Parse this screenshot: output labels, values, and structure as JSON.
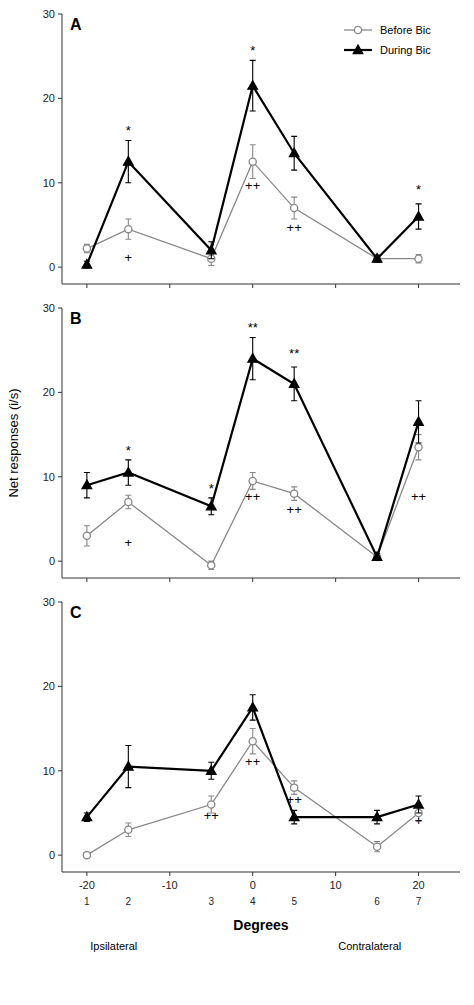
{
  "chart_data": [
    {
      "type": "line",
      "title": "A",
      "x": [
        -20,
        -15,
        -5,
        0,
        5,
        15,
        20
      ],
      "xlim": [
        -23,
        25
      ],
      "xticks": [
        -20,
        -10,
        0,
        10,
        20
      ],
      "ylim": [
        -2,
        30
      ],
      "yticks": [
        0,
        10,
        20,
        30
      ],
      "tick_labels": "y",
      "legend": "upper right",
      "series": [
        {
          "name": "Before Bic",
          "color": "#888888",
          "marker": "open-circle",
          "line_style": "solid",
          "values": [
            2.2,
            4.5,
            1.0,
            12.5,
            7.0,
            1.0,
            1.0
          ],
          "errors": [
            0.5,
            1.2,
            0.8,
            2.0,
            1.3,
            0.4,
            0.5
          ]
        },
        {
          "name": "During Bic",
          "color": "#000000",
          "marker": "triangle",
          "line_style": "solid",
          "values": [
            0.3,
            12.5,
            2.0,
            21.5,
            13.5,
            1.0,
            6.0
          ],
          "errors": [
            0.4,
            2.5,
            1.0,
            3.0,
            2.0,
            0.4,
            1.5
          ]
        }
      ],
      "annotations": [
        {
          "x": -15,
          "y": 15.5,
          "text": "*"
        },
        {
          "x": 0,
          "y": 25.0,
          "text": "*"
        },
        {
          "x": 20,
          "y": 8.5,
          "text": "*"
        },
        {
          "x": -15,
          "y": 0.5,
          "text": "+"
        },
        {
          "x": 0,
          "y": 9.0,
          "text": "++"
        },
        {
          "x": 5,
          "y": 4.0,
          "text": "++"
        }
      ]
    },
    {
      "type": "line",
      "title": "B",
      "ylabel": "Net responses (i/s)",
      "x": [
        -20,
        -15,
        -5,
        0,
        5,
        15,
        20
      ],
      "xlim": [
        -23,
        25
      ],
      "xticks": [
        -20,
        -10,
        0,
        10,
        20
      ],
      "ylim": [
        -2,
        30
      ],
      "yticks": [
        0,
        10,
        20,
        30
      ],
      "tick_labels": "y",
      "series": [
        {
          "color": "#888888",
          "marker": "open-circle",
          "line_style": "solid",
          "values": [
            3.0,
            7.0,
            -0.5,
            9.5,
            8.0,
            0.5,
            13.5
          ],
          "errors": [
            1.2,
            0.8,
            0.5,
            1.0,
            0.8,
            0.4,
            1.5
          ]
        },
        {
          "color": "#000000",
          "marker": "triangle",
          "line_style": "solid",
          "values": [
            9.0,
            10.5,
            6.5,
            24.0,
            21.0,
            0.5,
            16.5
          ],
          "errors": [
            1.5,
            1.5,
            1.0,
            2.5,
            2.0,
            0.4,
            2.5
          ]
        }
      ],
      "annotations": [
        {
          "x": -15,
          "y": 12.5,
          "text": "*"
        },
        {
          "x": -5,
          "y": 8.0,
          "text": "*"
        },
        {
          "x": 0,
          "y": 27.0,
          "text": "**"
        },
        {
          "x": 5,
          "y": 24.0,
          "text": "**"
        },
        {
          "x": -15,
          "y": 1.5,
          "text": "+"
        },
        {
          "x": 0,
          "y": 7.0,
          "text": "++"
        },
        {
          "x": 5,
          "y": 5.5,
          "text": "++"
        },
        {
          "x": 20,
          "y": 7.0,
          "text": "++"
        }
      ]
    },
    {
      "type": "line",
      "title": "C",
      "xlabel": "Degrees",
      "xlabel_left": "Ipsilateral",
      "xlabel_right": "Contralateral",
      "x": [
        -20,
        -15,
        -5,
        0,
        5,
        15,
        20
      ],
      "point_labels": [
        "1",
        "2",
        "3",
        "4",
        "5",
        "6",
        "7"
      ],
      "xlim": [
        -23,
        25
      ],
      "xticks": [
        -20,
        -10,
        0,
        10,
        20
      ],
      "ylim": [
        -2,
        30
      ],
      "yticks": [
        0,
        10,
        20,
        30
      ],
      "series": [
        {
          "color": "#888888",
          "marker": "open-circle",
          "line_style": "solid",
          "values": [
            0.0,
            3.0,
            6.0,
            13.5,
            8.0,
            1.0,
            5.0
          ],
          "errors": [
            0.3,
            0.8,
            1.0,
            1.5,
            0.8,
            0.6,
            1.0
          ]
        },
        {
          "color": "#000000",
          "marker": "triangle",
          "line_style": "solid",
          "values": [
            4.5,
            10.5,
            10.0,
            17.5,
            4.5,
            4.5,
            6.0
          ],
          "errors": [
            0.5,
            2.5,
            1.0,
            1.5,
            0.8,
            0.8,
            1.0
          ]
        }
      ],
      "annotations": [
        {
          "x": -5,
          "y": 4.0,
          "text": "++"
        },
        {
          "x": 0,
          "y": 10.5,
          "text": "++"
        },
        {
          "x": 5,
          "y": 6.0,
          "text": "++"
        },
        {
          "x": 20,
          "y": 3.5,
          "text": "+"
        }
      ]
    }
  ]
}
